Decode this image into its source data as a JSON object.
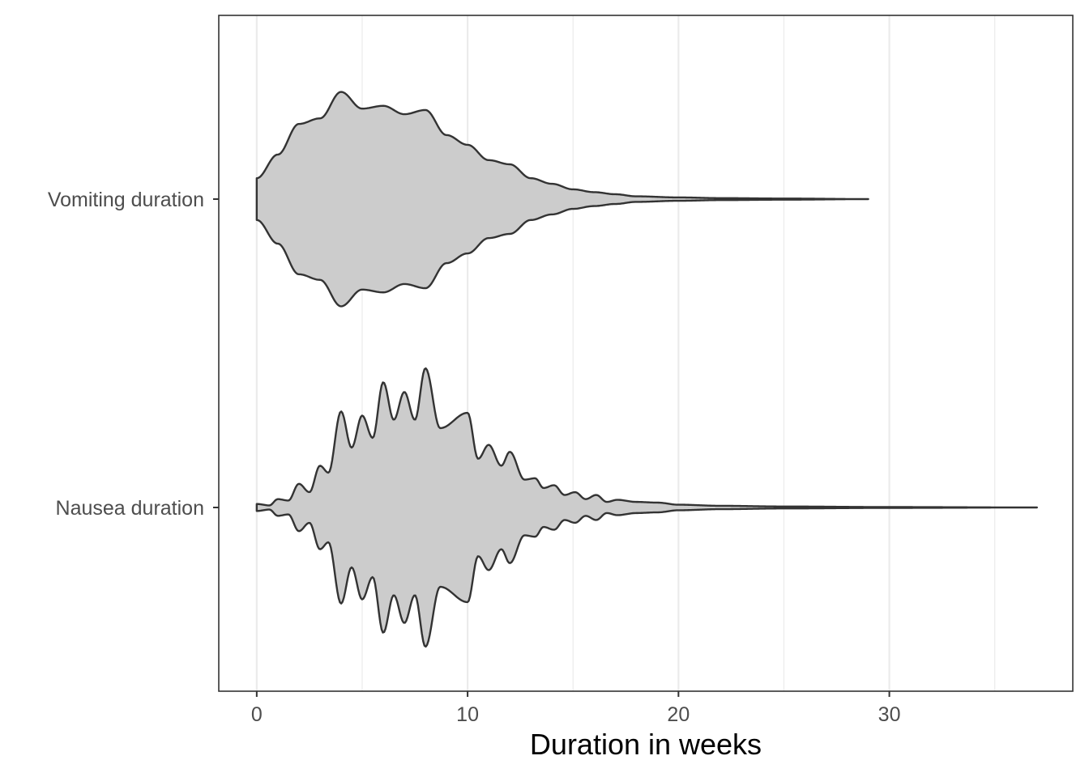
{
  "chart_data": {
    "type": "violin",
    "orientation": "horizontal",
    "xlabel": "Duration in weeks",
    "ylabel": "",
    "xlim": [
      -1.8,
      38.7
    ],
    "x_ticks": [
      0,
      10,
      20,
      30
    ],
    "x_tick_labels": [
      "0",
      "10",
      "20",
      "30"
    ],
    "x_minor_ticks": [
      5,
      15,
      25,
      35
    ],
    "categories": [
      "Vomiting duration",
      "Nausea duration"
    ],
    "grid": "vertical",
    "series": [
      {
        "name": "Vomiting duration",
        "fill": "#cccccc",
        "range": [
          0,
          29
        ],
        "density_halfwidth": [
          [
            0,
            0.15
          ],
          [
            1,
            0.32
          ],
          [
            2,
            0.54
          ],
          [
            3,
            0.58
          ],
          [
            4,
            0.77
          ],
          [
            5,
            0.65
          ],
          [
            6,
            0.67
          ],
          [
            7,
            0.61
          ],
          [
            8,
            0.64
          ],
          [
            9,
            0.46
          ],
          [
            10,
            0.39
          ],
          [
            11,
            0.28
          ],
          [
            12,
            0.25
          ],
          [
            13,
            0.15
          ],
          [
            14,
            0.11
          ],
          [
            15,
            0.07
          ],
          [
            16,
            0.05
          ],
          [
            17,
            0.035
          ],
          [
            18,
            0.02
          ],
          [
            20,
            0.012
          ],
          [
            22,
            0.007
          ],
          [
            25,
            0.004
          ],
          [
            29,
            0.0
          ]
        ]
      },
      {
        "name": "Nausea duration",
        "fill": "#cccccc",
        "range": [
          0,
          37
        ],
        "density_halfwidth": [
          [
            0,
            0.025
          ],
          [
            0.6,
            0.015
          ],
          [
            1.0,
            0.06
          ],
          [
            1.5,
            0.05
          ],
          [
            2.0,
            0.17
          ],
          [
            2.5,
            0.11
          ],
          [
            3.0,
            0.3
          ],
          [
            3.4,
            0.25
          ],
          [
            4.0,
            0.69
          ],
          [
            4.5,
            0.43
          ],
          [
            5.0,
            0.66
          ],
          [
            5.5,
            0.5
          ],
          [
            6.0,
            0.9
          ],
          [
            6.5,
            0.63
          ],
          [
            7.0,
            0.83
          ],
          [
            7.5,
            0.63
          ],
          [
            8.0,
            1.0
          ],
          [
            8.7,
            0.57
          ],
          [
            10.0,
            0.68
          ],
          [
            10.5,
            0.35
          ],
          [
            11.0,
            0.45
          ],
          [
            11.6,
            0.3
          ],
          [
            12.0,
            0.4
          ],
          [
            12.7,
            0.2
          ],
          [
            13.2,
            0.21
          ],
          [
            13.6,
            0.14
          ],
          [
            14.1,
            0.16
          ],
          [
            14.6,
            0.09
          ],
          [
            15.1,
            0.11
          ],
          [
            15.6,
            0.06
          ],
          [
            16.1,
            0.09
          ],
          [
            16.6,
            0.04
          ],
          [
            17.1,
            0.055
          ],
          [
            18,
            0.04
          ],
          [
            19,
            0.035
          ],
          [
            20,
            0.02
          ],
          [
            22,
            0.012
          ],
          [
            25,
            0.007
          ],
          [
            30,
            0.003
          ],
          [
            37,
            0.0
          ]
        ]
      }
    ]
  }
}
